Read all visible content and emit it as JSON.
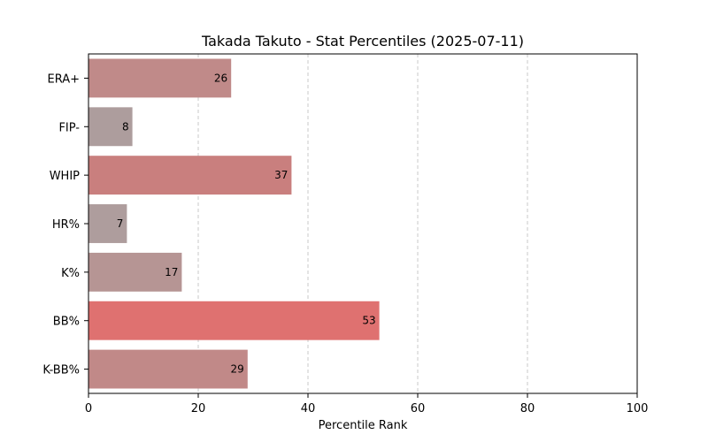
{
  "chart_data": {
    "type": "bar",
    "orientation": "horizontal",
    "title": "Takada Takuto - Stat Percentiles (2025-07-11)",
    "xlabel": "Percentile Rank",
    "ylabel": "",
    "xlim": [
      0,
      100
    ],
    "xticks": [
      0,
      20,
      40,
      60,
      80,
      100
    ],
    "grid": "x-dashed",
    "categories": [
      "ERA+",
      "FIP-",
      "WHIP",
      "HR%",
      "K%",
      "BB%",
      "K-BB%"
    ],
    "values": [
      26,
      8,
      37,
      7,
      17,
      53,
      29
    ],
    "colors": [
      "#c08a89",
      "#ad9d9d",
      "#c97f7e",
      "#ae9d9d",
      "#b69594",
      "#df7170",
      "#c18988"
    ]
  }
}
